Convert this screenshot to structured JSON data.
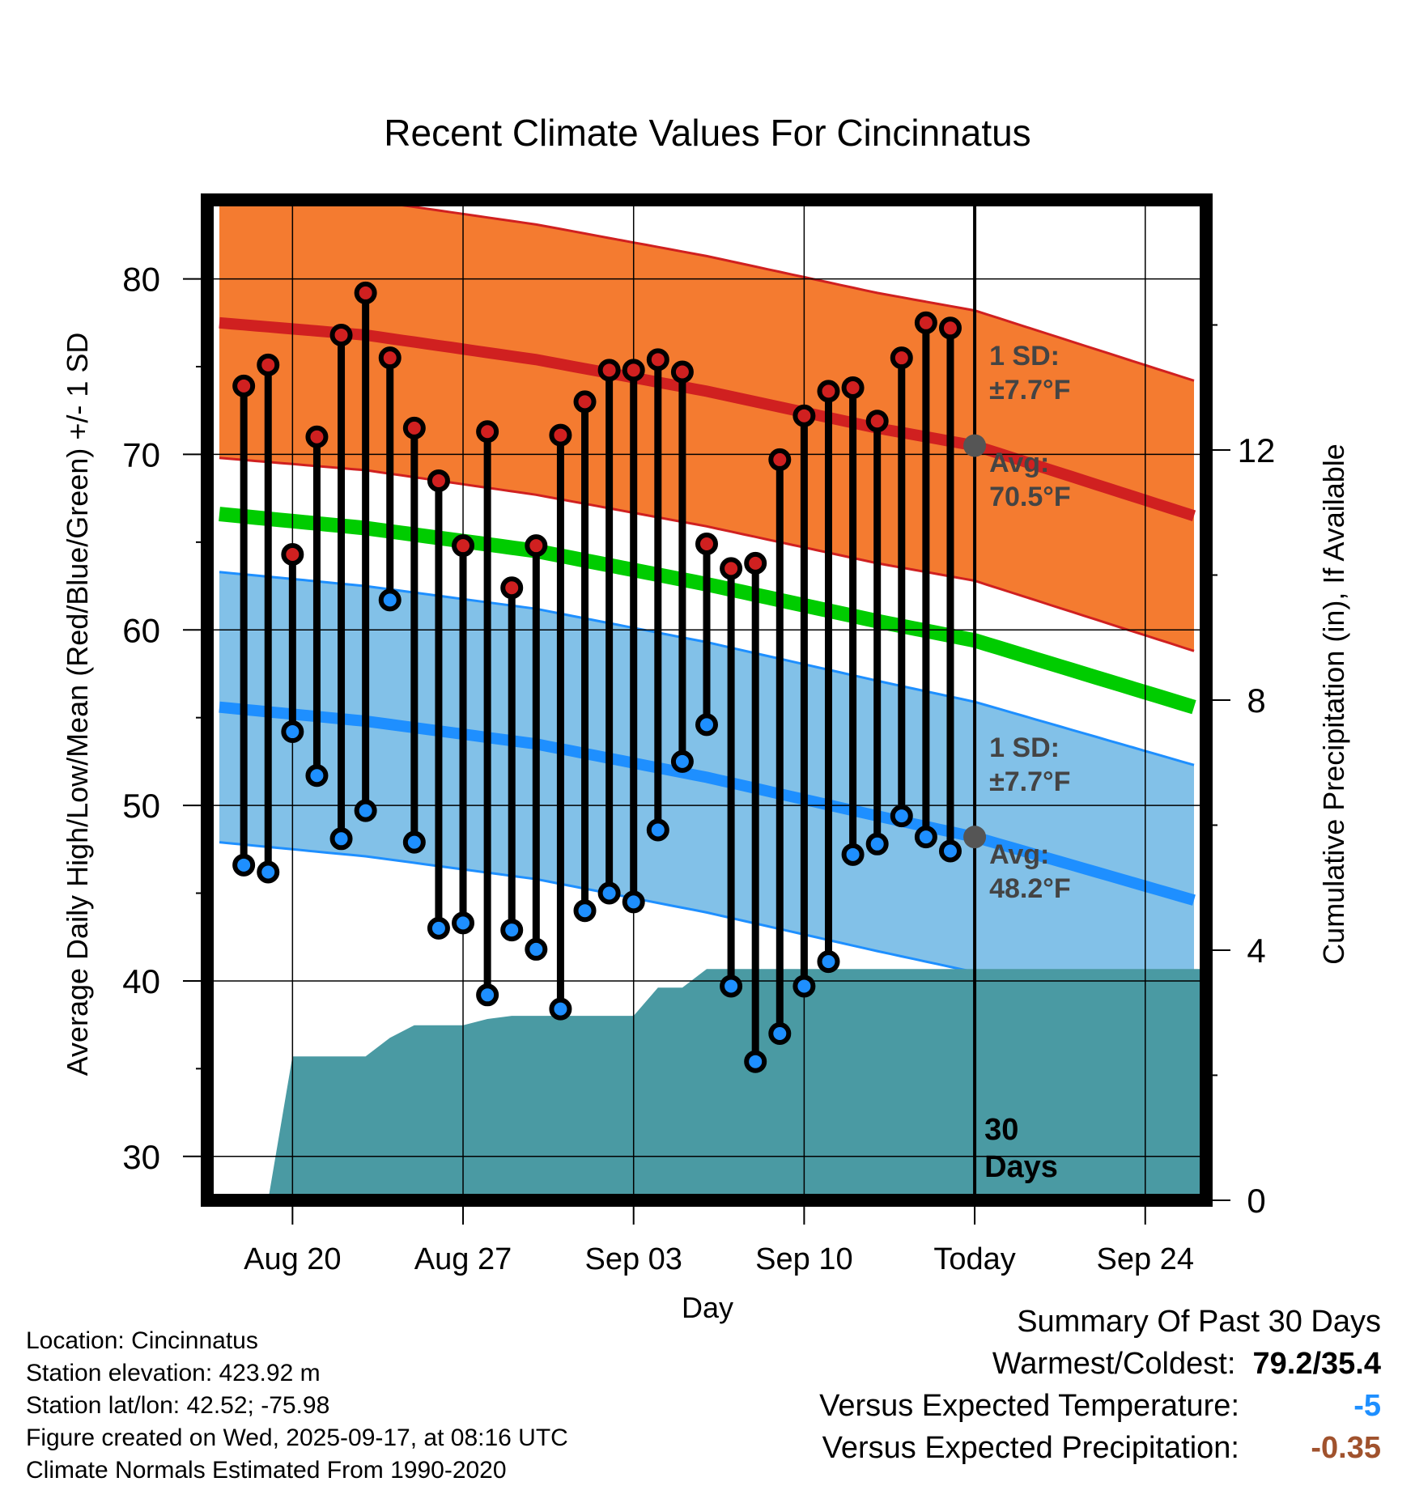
{
  "chart_data": {
    "type": "line",
    "title": "Recent Climate Values For Cincinnatus",
    "xlabel": "Day",
    "ylabel": "Average Daily High/Low/Mean (Red/Blue/Green) +/- 1 SD",
    "y2label": "Cumulative Precipitation (in), If Available",
    "ylim": [
      27.5,
      84.5
    ],
    "y2lim": [
      0,
      16
    ],
    "y_ticks": [
      30,
      40,
      50,
      60,
      70,
      80
    ],
    "y2_ticks": [
      0,
      4,
      8,
      12
    ],
    "x_range_days": [
      -31.5,
      9.5
    ],
    "x_ticks": [
      {
        "day": -28,
        "label": "Aug 20"
      },
      {
        "day": -21,
        "label": "Aug 27"
      },
      {
        "day": -14,
        "label": "Sep 03"
      },
      {
        "day": -7,
        "label": "Sep 10"
      },
      {
        "day": 0,
        "label": "Today"
      },
      {
        "day": 7,
        "label": "Sep 24"
      }
    ],
    "today_label": "30\nDays",
    "normal_high": {
      "x": [
        -31,
        -25,
        -18,
        -11,
        -4,
        0,
        9
      ],
      "values": [
        77.5,
        76.8,
        75.4,
        73.6,
        71.5,
        70.5,
        66.5
      ],
      "sd": 7.7
    },
    "normal_low": {
      "x": [
        -31,
        -25,
        -18,
        -11,
        -4,
        0,
        9
      ],
      "values": [
        55.6,
        54.8,
        53.5,
        51.6,
        49.4,
        48.2,
        44.6
      ],
      "sd": 7.7
    },
    "normal_mean": {
      "x": [
        -31,
        -25,
        -18,
        -11,
        -4,
        0,
        9
      ],
      "values": [
        66.6,
        65.8,
        64.5,
        62.6,
        60.5,
        59.4,
        55.6
      ]
    },
    "high_annotation": {
      "line1": "1 SD:",
      "line2": "±7.7°F",
      "line3": "Avg:",
      "line4": "70.5°F"
    },
    "low_annotation": {
      "line1": "1 SD:",
      "line2": "±7.7°F",
      "line3": "Avg:",
      "line4": "48.2°F"
    },
    "days": [
      -30,
      -29,
      -28,
      -27,
      -26,
      -25,
      -24,
      -23,
      -22,
      -21,
      -20,
      -19,
      -18,
      -17,
      -16,
      -15,
      -14,
      -13,
      -12,
      -11,
      -10,
      -9,
      -8,
      -7,
      -6,
      -5,
      -4,
      -3,
      -2,
      -1
    ],
    "daily_high": [
      73.9,
      75.1,
      64.3,
      71.0,
      76.8,
      79.2,
      75.5,
      71.5,
      68.5,
      64.8,
      71.3,
      62.4,
      64.8,
      71.1,
      73.0,
      74.8,
      74.8,
      75.4,
      74.7,
      64.9,
      63.5,
      63.8,
      69.7,
      72.2,
      73.6,
      73.8,
      71.9,
      75.5,
      77.5,
      77.2
    ],
    "daily_low": [
      46.6,
      46.2,
      54.2,
      51.7,
      48.1,
      49.7,
      61.7,
      47.9,
      43.0,
      43.3,
      39.2,
      42.9,
      41.8,
      38.4,
      44.0,
      45.0,
      44.5,
      48.6,
      52.5,
      54.6,
      39.7,
      35.4,
      37.0,
      39.7,
      41.1,
      47.2,
      47.8,
      49.4,
      48.2,
      47.4
    ],
    "precip": {
      "x": [
        -29,
        -28,
        -26.9,
        -25,
        -24,
        -23,
        -21,
        -20,
        -19,
        -18,
        -14,
        -13,
        -12,
        -11,
        9.3
      ],
      "values": [
        0,
        2.3,
        2.3,
        2.3,
        2.6,
        2.8,
        2.8,
        2.9,
        2.95,
        2.95,
        2.95,
        3.4,
        3.4,
        3.7,
        3.7
      ]
    }
  },
  "footer": {
    "location": "Location: Cincinnatus",
    "elevation": "Station elevation: 423.92 m",
    "latlon": "Station lat/lon: 42.52; -75.98",
    "created": "Figure created on Wed, 2025-09-17, at 08:16 UTC",
    "normals": "Climate Normals Estimated From 1990-2020"
  },
  "summary": {
    "title": "Summary Of Past 30 Days",
    "warmest_label": "Warmest/Coldest:",
    "warmest_value": "79.2/35.4",
    "temp_label": "Versus Expected Temperature:",
    "temp_value": "-5",
    "temp_color": "#1e8fff",
    "precip_label": "Versus Expected Precipitation:",
    "precip_value": "-0.35",
    "precip_color": "#a0522d"
  },
  "colors": {
    "high_band": "#f47b30",
    "high_line": "#d02020",
    "low_band": "#82c1e8",
    "low_line": "#1e8fff",
    "mean_line": "#00cc00",
    "precip": "#4a9aa3",
    "avg_dot": "#555555"
  }
}
